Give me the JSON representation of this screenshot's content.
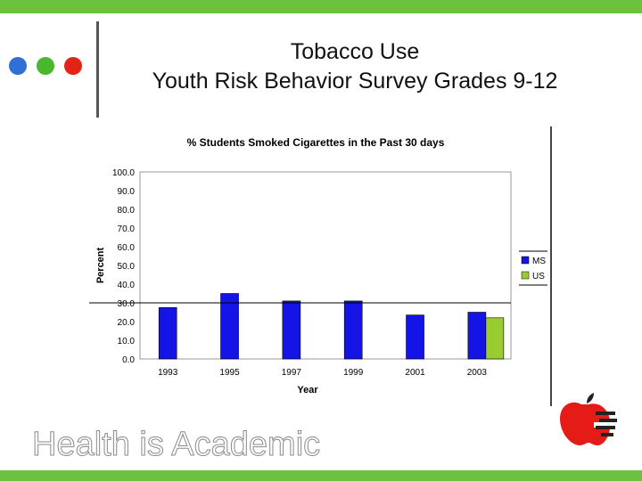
{
  "slide": {
    "title_line1": "Tobacco Use",
    "title_line2": "Youth Risk Behavior Survey Grades 9-12",
    "footer_logo_text": "Health is Academic"
  },
  "decoration": {
    "dot_colors": [
      "#2f6fd6",
      "#4ab82c",
      "#e42318"
    ],
    "accent_green": "#6cc13f",
    "apple_logo": "apple-icon"
  },
  "chart_data": {
    "type": "bar",
    "title": "% Students Smoked Cigarettes in the Past 30 days",
    "xlabel": "Year",
    "ylabel": "Percent",
    "categories": [
      "1993",
      "1995",
      "1997",
      "1999",
      "2001",
      "2003"
    ],
    "series": [
      {
        "name": "MS",
        "color": "#1414e6",
        "values": [
          27.5,
          35.0,
          31.0,
          31.0,
          23.5,
          25.0
        ]
      },
      {
        "name": "US",
        "color": "#99cc33",
        "values": [
          null,
          null,
          null,
          null,
          null,
          22.0
        ]
      }
    ],
    "ylim": [
      0,
      100
    ],
    "yticks": [
      "0.0",
      "10.0",
      "20.0",
      "30.0",
      "40.0",
      "50.0",
      "60.0",
      "70.0",
      "80.0",
      "90.0",
      "100.0"
    ],
    "reference_line": 30,
    "legend_position": "right",
    "grid": false
  }
}
